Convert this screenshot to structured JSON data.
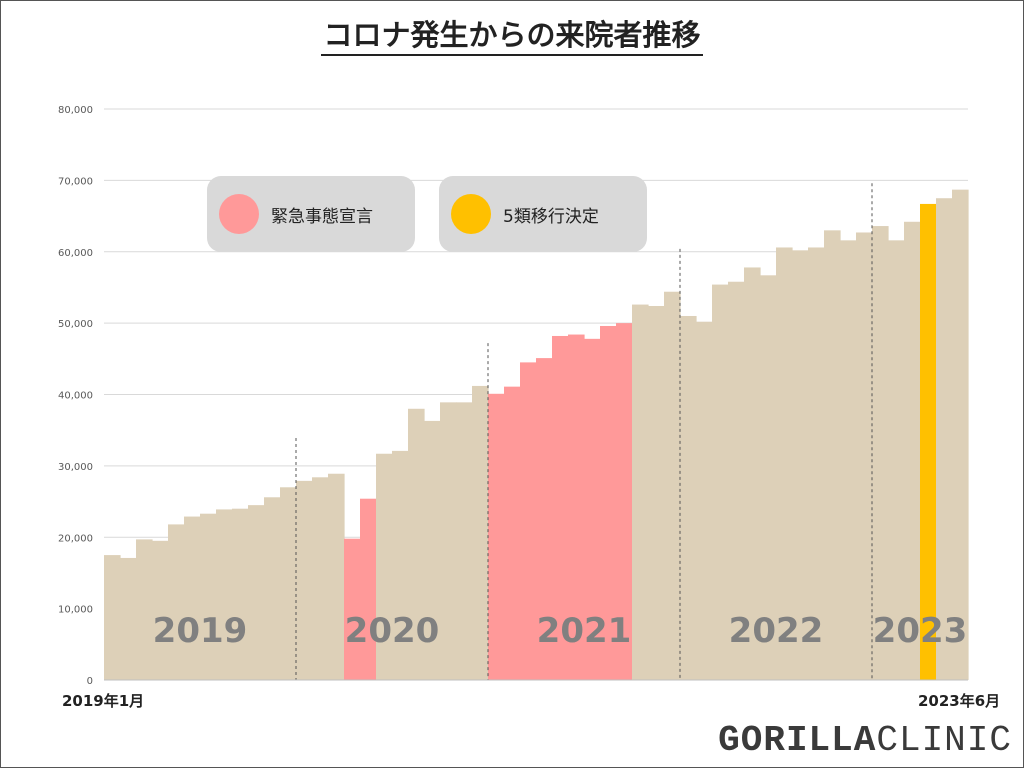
{
  "title": "コロナ発生からの来院者推移",
  "legend": [
    {
      "label": "緊急事態宣言",
      "color": "#ff9999"
    },
    {
      "label": "5類移行決定",
      "color": "#ffc000"
    }
  ],
  "x_start_label": "2019年1月",
  "x_end_label": "2023年6月",
  "brand": {
    "bold": "GORILLA",
    "light": "CLINIC"
  },
  "colors": {
    "base": "#ddd0b8",
    "emergency": "#ff9999",
    "transition": "#ffc000",
    "year_label": "#808080"
  },
  "chart_data": {
    "type": "bar",
    "title": "コロナ発生からの来院者推移",
    "ylim": [
      0,
      80000
    ],
    "yticks": [
      0,
      10000,
      20000,
      30000,
      40000,
      50000,
      60000,
      70000,
      80000
    ],
    "ytick_labels": [
      "0",
      "10,000",
      "20,000",
      "30,000",
      "40,000",
      "50,000",
      "60,000",
      "70,000",
      "80,000"
    ],
    "grid": true,
    "start_month": "2019-01",
    "end_month": "2023-06",
    "year_labels": [
      "2019",
      "2020",
      "2021",
      "2022",
      "2023"
    ],
    "values": [
      17500,
      17100,
      19700,
      19500,
      21800,
      22900,
      23300,
      23900,
      24000,
      24500,
      25600,
      27000,
      27900,
      28400,
      28900,
      19800,
      25400,
      31700,
      32100,
      38000,
      36300,
      38900,
      38900,
      41200,
      40100,
      41100,
      44500,
      45100,
      48200,
      48400,
      47800,
      49600,
      50000,
      52600,
      52400,
      54400,
      51000,
      50200,
      55400,
      55800,
      57800,
      56700,
      60600,
      60200,
      60600,
      63000,
      61600,
      62700,
      63600,
      61600,
      64200,
      66700,
      67500,
      68700
    ],
    "highlight": {
      "emergency": [
        15,
        16,
        24,
        25,
        26,
        27,
        28,
        29,
        30,
        31,
        32
      ],
      "transition": [
        51
      ]
    }
  }
}
